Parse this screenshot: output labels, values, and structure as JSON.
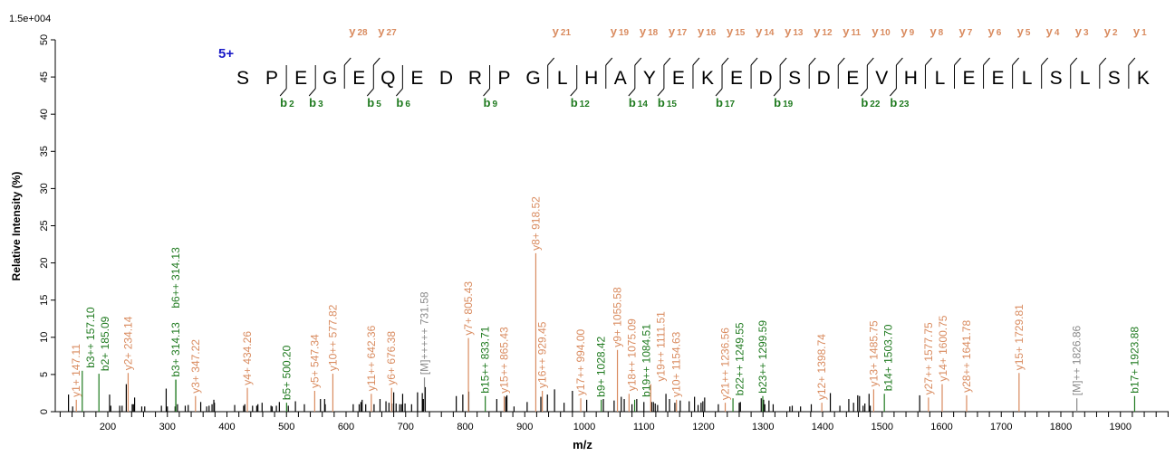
{
  "chart_data": {
    "type": "bar",
    "subtype": "mass-spectrum",
    "scale_label": "1.5e+004",
    "xlabel": "m/z",
    "ylabel": "Relative  Intensity (%)",
    "xlim": [
      112,
      1981
    ],
    "ylim": [
      0,
      50
    ],
    "x_ticks": [
      200,
      300,
      400,
      500,
      600,
      700,
      800,
      900,
      1000,
      1100,
      1200,
      1300,
      1400,
      1500,
      1600,
      1700,
      1800,
      1900
    ],
    "y_ticks": [
      0,
      5,
      10,
      15,
      20,
      25,
      30,
      35,
      40,
      45,
      50
    ],
    "grid": false,
    "colors": {
      "y": "#d98b5f",
      "b": "#1f7a1f",
      "M": "#8a8a8a",
      "other": "#000000",
      "charge": "#1a1ac8"
    },
    "charge": "5+",
    "sequence": [
      "S",
      "P",
      "E",
      "G",
      "E",
      "Q",
      "E",
      "D",
      "R",
      "P",
      "G",
      "L",
      "H",
      "A",
      "Y",
      "E",
      "K",
      "E",
      "D",
      "S",
      "D",
      "E",
      "V",
      "H",
      "L",
      "E",
      "E",
      "L",
      "S",
      "L",
      "S",
      "K"
    ],
    "y_ions": [
      28,
      27,
      21,
      19,
      18,
      17,
      16,
      15,
      14,
      13,
      12,
      11,
      10,
      9,
      8,
      7,
      6,
      5,
      4,
      3,
      2,
      1
    ],
    "b_ions": [
      2,
      3,
      5,
      6,
      9,
      12,
      14,
      15,
      17,
      19,
      22,
      23
    ],
    "labeled_peaks": [
      {
        "mz": 147.11,
        "intensity": 1.6,
        "type": "y",
        "label": "y1+ 147.11"
      },
      {
        "mz": 157.1,
        "intensity": 5.5,
        "type": "b",
        "label": "b3++ 157.10"
      },
      {
        "mz": 185.09,
        "intensity": 5.1,
        "type": "b",
        "label": "b2+ 185.09"
      },
      {
        "mz": 234.14,
        "intensity": 5.2,
        "type": "y",
        "label": "y2+ 234.14"
      },
      {
        "mz": 314.13,
        "intensity": 4.3,
        "type": "b",
        "label": "b3+ 314.13"
      },
      {
        "mz": 314.13,
        "intensity": 4.3,
        "type": "b",
        "label": "b6++ 314.13"
      },
      {
        "mz": 347.22,
        "intensity": 2.1,
        "type": "y",
        "label": "y3+ 347.22"
      },
      {
        "mz": 434.26,
        "intensity": 3.2,
        "type": "y",
        "label": "y4+ 434.26"
      },
      {
        "mz": 500.2,
        "intensity": 1.2,
        "type": "b",
        "label": "b5+ 500.20"
      },
      {
        "mz": 547.34,
        "intensity": 2.8,
        "type": "y",
        "label": "y5+ 547.34"
      },
      {
        "mz": 577.82,
        "intensity": 5.1,
        "type": "y",
        "label": "y10++ 577.82"
      },
      {
        "mz": 642.36,
        "intensity": 2.4,
        "type": "y",
        "label": "y11++ 642.36"
      },
      {
        "mz": 676.38,
        "intensity": 3.2,
        "type": "y",
        "label": "y6+ 676.38"
      },
      {
        "mz": 731.58,
        "intensity": 4.6,
        "type": "M",
        "label": "[M]+++++ 731.58"
      },
      {
        "mz": 805.43,
        "intensity": 9.9,
        "type": "y",
        "label": "y7+ 805.43"
      },
      {
        "mz": 833.71,
        "intensity": 2.1,
        "type": "b",
        "label": "b15++ 833.71"
      },
      {
        "mz": 865.43,
        "intensity": 2.1,
        "type": "y",
        "label": "y15++ 865.43"
      },
      {
        "mz": 918.52,
        "intensity": 21.3,
        "type": "y",
        "label": "y8+ 918.52"
      },
      {
        "mz": 929.45,
        "intensity": 2.8,
        "type": "y",
        "label": "y16++ 929.45"
      },
      {
        "mz": 994.0,
        "intensity": 1.8,
        "type": "y",
        "label": "y17++ 994.00"
      },
      {
        "mz": 1028.42,
        "intensity": 1.6,
        "type": "b",
        "label": "b9+ 1028.42"
      },
      {
        "mz": 1055.58,
        "intensity": 8.3,
        "type": "y",
        "label": "y9+ 1055.58"
      },
      {
        "mz": 1075.09,
        "intensity": 2.4,
        "type": "y",
        "label": "y18++ 1075.09"
      },
      {
        "mz": 1084.51,
        "intensity": 1.6,
        "type": "b",
        "label": "b19++ 1084.51"
      },
      {
        "mz": 1111.51,
        "intensity": 3.7,
        "type": "y",
        "label": "y19++ 1111.51"
      },
      {
        "mz": 1154.63,
        "intensity": 1.6,
        "type": "y",
        "label": "y10+ 1154.63"
      },
      {
        "mz": 1236.56,
        "intensity": 1.2,
        "type": "y",
        "label": "y21++ 1236.56"
      },
      {
        "mz": 1249.55,
        "intensity": 1.8,
        "type": "b",
        "label": "b22++ 1249.55"
      },
      {
        "mz": 1299.59,
        "intensity": 2.1,
        "type": "b",
        "label": "b23++ 1299.59"
      },
      {
        "mz": 1398.74,
        "intensity": 1.2,
        "type": "y",
        "label": "y12+ 1398.74"
      },
      {
        "mz": 1485.75,
        "intensity": 3.0,
        "type": "y",
        "label": "y13+ 1485.75"
      },
      {
        "mz": 1503.7,
        "intensity": 2.4,
        "type": "b",
        "label": "b14+ 1503.70"
      },
      {
        "mz": 1577.75,
        "intensity": 1.9,
        "type": "y",
        "label": "y27++ 1577.75"
      },
      {
        "mz": 1600.75,
        "intensity": 3.7,
        "type": "y",
        "label": "y14+ 1600.75"
      },
      {
        "mz": 1641.78,
        "intensity": 2.2,
        "type": "y",
        "label": "y28++ 1641.78"
      },
      {
        "mz": 1729.81,
        "intensity": 5.2,
        "type": "y",
        "label": "y15+ 1729.81"
      },
      {
        "mz": 1826.86,
        "intensity": 1.8,
        "type": "M",
        "label": "[M]++ 1826.86"
      },
      {
        "mz": 1923.88,
        "intensity": 2.1,
        "type": "b",
        "label": "b17+ 1923.88"
      }
    ],
    "unlabeled_peaks": [
      [
        134,
        2.3
      ],
      [
        141,
        0.7
      ],
      [
        203,
        2.3
      ],
      [
        205,
        0.8
      ],
      [
        220,
        0.8
      ],
      [
        224,
        0.8
      ],
      [
        231,
        3.7
      ],
      [
        241,
        1.0
      ],
      [
        243,
        1.0
      ],
      [
        245,
        1.9
      ],
      [
        257,
        0.7
      ],
      [
        262,
        0.7
      ],
      [
        290,
        0.8
      ],
      [
        298,
        3.1
      ],
      [
        300,
        0.7
      ],
      [
        313,
        0.7
      ],
      [
        317,
        1.0
      ],
      [
        330,
        0.8
      ],
      [
        335,
        0.9
      ],
      [
        356,
        1.3
      ],
      [
        366,
        0.7
      ],
      [
        370,
        0.8
      ],
      [
        375,
        1.0
      ],
      [
        378,
        1.6
      ],
      [
        379,
        1.2
      ],
      [
        413,
        0.9
      ],
      [
        428,
        0.8
      ],
      [
        430,
        1.0
      ],
      [
        443,
        0.8
      ],
      [
        450,
        0.8
      ],
      [
        452,
        1.0
      ],
      [
        459,
        1.2
      ],
      [
        474,
        0.8
      ],
      [
        476,
        0.7
      ],
      [
        483,
        0.8
      ],
      [
        488,
        1.3
      ],
      [
        503,
        0.8
      ],
      [
        515,
        1.4
      ],
      [
        530,
        1.0
      ],
      [
        557,
        1.7
      ],
      [
        564,
        1.7
      ],
      [
        565,
        1.0
      ],
      [
        612,
        1.0
      ],
      [
        622,
        1.0
      ],
      [
        625,
        1.3
      ],
      [
        627,
        1.6
      ],
      [
        633,
        1.0
      ],
      [
        647,
        1.0
      ],
      [
        657,
        1.7
      ],
      [
        667,
        1.4
      ],
      [
        672,
        1.2
      ],
      [
        677,
        1.1
      ],
      [
        680,
        2.6
      ],
      [
        684,
        1.1
      ],
      [
        690,
        1.0
      ],
      [
        693,
        1.0
      ],
      [
        695,
        2.4
      ],
      [
        699,
        1.1
      ],
      [
        710,
        1.0
      ],
      [
        720,
        2.6
      ],
      [
        728,
        2.5
      ],
      [
        729,
        1.7
      ],
      [
        730,
        1.7
      ],
      [
        733,
        3.3
      ],
      [
        785,
        2.1
      ],
      [
        796,
        2.3
      ],
      [
        806,
        2.7
      ],
      [
        853,
        1.7
      ],
      [
        868,
        2.0
      ],
      [
        870,
        2.2
      ],
      [
        882,
        0.7
      ],
      [
        904,
        1.3
      ],
      [
        927,
        2.0
      ],
      [
        938,
        2.3
      ],
      [
        950,
        3.0
      ],
      [
        966,
        1.2
      ],
      [
        980,
        2.8
      ],
      [
        1004,
        1.6
      ],
      [
        1032,
        1.7
      ],
      [
        1050,
        1.5
      ],
      [
        1062,
        2.0
      ],
      [
        1067,
        1.7
      ],
      [
        1080,
        1.0
      ],
      [
        1088,
        1.7
      ],
      [
        1100,
        1.3
      ],
      [
        1113,
        1.3
      ],
      [
        1116,
        1.3
      ],
      [
        1119,
        1.1
      ],
      [
        1123,
        0.9
      ],
      [
        1137,
        2.4
      ],
      [
        1143,
        1.7
      ],
      [
        1152,
        1.2
      ],
      [
        1161,
        1.5
      ],
      [
        1176,
        1.4
      ],
      [
        1185,
        2.0
      ],
      [
        1191,
        0.9
      ],
      [
        1196,
        1.2
      ],
      [
        1199,
        1.4
      ],
      [
        1202,
        1.9
      ],
      [
        1225,
        1.0
      ],
      [
        1260,
        1.2
      ],
      [
        1262,
        1.3
      ],
      [
        1297,
        1.8
      ],
      [
        1301,
        1.6
      ],
      [
        1303,
        1.0
      ],
      [
        1310,
        1.5
      ],
      [
        1317,
        1.0
      ],
      [
        1345,
        0.7
      ],
      [
        1349,
        0.8
      ],
      [
        1363,
        0.7
      ],
      [
        1381,
        1.0
      ],
      [
        1413,
        2.5
      ],
      [
        1429,
        0.8
      ],
      [
        1444,
        1.7
      ],
      [
        1452,
        1.2
      ],
      [
        1459,
        2.2
      ],
      [
        1462,
        2.1
      ],
      [
        1468,
        0.8
      ],
      [
        1471,
        1.1
      ],
      [
        1478,
        2.4
      ],
      [
        1480,
        0.8
      ],
      [
        1563,
        2.2
      ]
    ]
  }
}
